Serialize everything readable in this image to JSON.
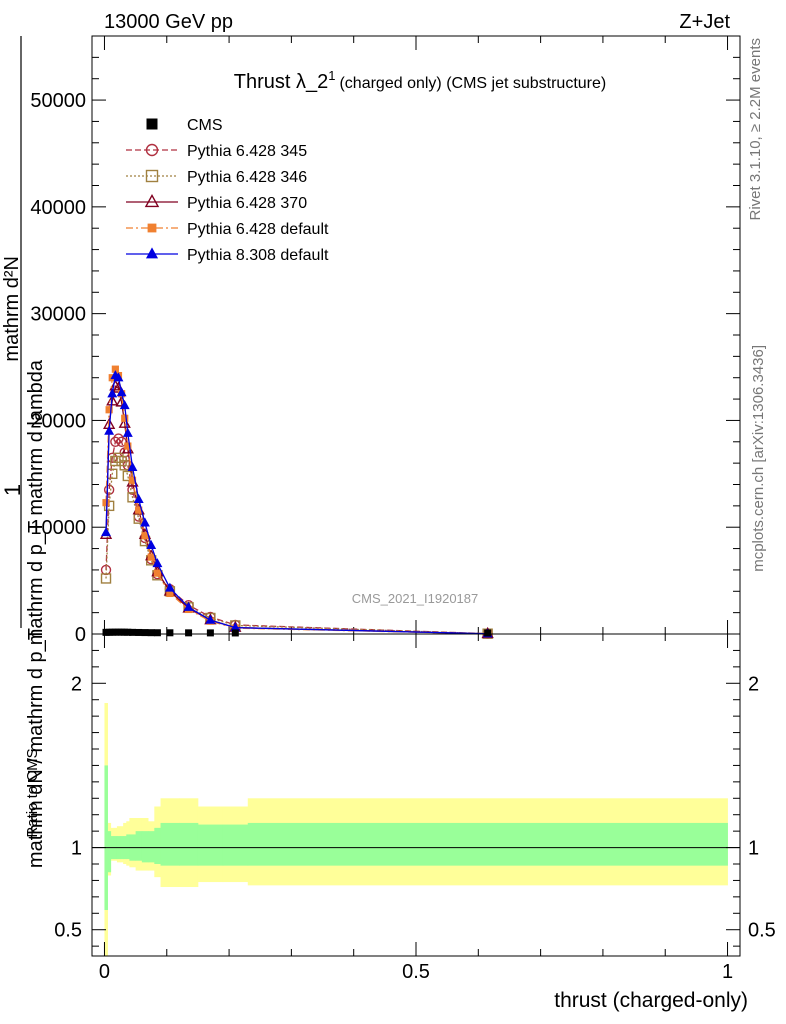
{
  "header": {
    "energy": "13000 GeV pp",
    "process": "Z+Jet",
    "side_top": "Rivet 3.1.10, ≥ 2.2M events",
    "side_bottom": "mcplots.cern.ch [arXiv:1306.3436]"
  },
  "chart_data": [
    {
      "type": "line",
      "panel": "main",
      "title": "Thrust λ_2¹ (charged only) (CMS jet substructure)",
      "title_main": "Thrust λ_2",
      "title_sup": "1",
      "title_rest": "(charged only) (CMS jet substructure)",
      "watermark": "CMS_2021_I1920187",
      "ylabel": "mathrm d²N / mathrm d p_T mathrm d lambda",
      "ylabel_prefix": "1",
      "ylabel_denominator": "mathrm dN / mathrm d p_T",
      "ylabel_numerator_line1": "mathrm d²N",
      "ylabel_numerator_line2": "mathrm d p_T mathrm d lambda",
      "xlim": [
        -0.02,
        1.02
      ],
      "ylim": [
        0,
        56000
      ],
      "yticks": [
        0,
        10000,
        20000,
        30000,
        40000,
        50000
      ],
      "ytick_labels": [
        "0",
        "10000",
        "20000",
        "30000",
        "40000",
        "50000"
      ],
      "legend_position": "top-left",
      "series": [
        {
          "name": "CMS",
          "color": "#000000",
          "marker": "filled-square",
          "line": "none",
          "x": [
            0.0025,
            0.0075,
            0.0125,
            0.0175,
            0.0225,
            0.0275,
            0.0325,
            0.0375,
            0.045,
            0.055,
            0.065,
            0.075,
            0.085,
            0.105,
            0.135,
            0.17,
            0.21,
            0.615
          ],
          "y": [
            60,
            70,
            75,
            80,
            80,
            80,
            75,
            70,
            60,
            50,
            40,
            30,
            25,
            20,
            15,
            10,
            5,
            1
          ]
        },
        {
          "name": "Pythia 6.428 345",
          "color": "#b03040",
          "marker": "open-circle",
          "line": "dashed",
          "x": [
            0.0025,
            0.0075,
            0.0125,
            0.0175,
            0.0225,
            0.0275,
            0.0325,
            0.0375,
            0.045,
            0.055,
            0.065,
            0.075,
            0.085,
            0.105,
            0.135,
            0.17,
            0.21,
            0.615
          ],
          "y": [
            6000,
            13500,
            16500,
            18000,
            18300,
            18000,
            17000,
            15800,
            13500,
            11000,
            9000,
            7000,
            5600,
            4200,
            2700,
            1600,
            850,
            30
          ]
        },
        {
          "name": "Pythia 6.428 346",
          "color": "#a08040",
          "marker": "open-square",
          "line": "dotted",
          "x": [
            0.0025,
            0.0075,
            0.0125,
            0.0175,
            0.0225,
            0.0275,
            0.0325,
            0.0375,
            0.045,
            0.055,
            0.065,
            0.075,
            0.085,
            0.105,
            0.135,
            0.17,
            0.21,
            0.615
          ],
          "y": [
            5200,
            12000,
            15000,
            16200,
            16500,
            16200,
            15800,
            14800,
            12800,
            10800,
            8700,
            6900,
            5500,
            4000,
            2500,
            1500,
            800,
            30
          ]
        },
        {
          "name": "Pythia 6.428 370",
          "color": "#800020",
          "marker": "open-triangle",
          "line": "solid",
          "x": [
            0.0025,
            0.0075,
            0.0125,
            0.0175,
            0.0225,
            0.0275,
            0.0325,
            0.0375,
            0.045,
            0.055,
            0.065,
            0.075,
            0.085,
            0.105,
            0.135,
            0.17,
            0.21,
            0.615
          ],
          "y": [
            9300,
            19600,
            21800,
            23200,
            23000,
            21700,
            19700,
            17300,
            14200,
            11600,
            9300,
            7300,
            5800,
            4000,
            2400,
            1300,
            600,
            20
          ]
        },
        {
          "name": "Pythia 6.428 default",
          "color": "#f08030",
          "marker": "filled-square-small",
          "line": "dashdot",
          "x": [
            0.0025,
            0.0075,
            0.0125,
            0.0175,
            0.0225,
            0.0275,
            0.0325,
            0.0375,
            0.045,
            0.055,
            0.065,
            0.075,
            0.085,
            0.105,
            0.135,
            0.17,
            0.21,
            0.615
          ],
          "y": [
            12300,
            21000,
            24000,
            24800,
            24200,
            22500,
            20200,
            17600,
            14400,
            11600,
            9200,
            7200,
            5700,
            3800,
            2300,
            1200,
            550,
            15
          ]
        },
        {
          "name": "Pythia 8.308 default",
          "color": "#0000e0",
          "marker": "filled-triangle",
          "line": "solid",
          "x": [
            0.0025,
            0.0075,
            0.0125,
            0.0175,
            0.0225,
            0.0275,
            0.0325,
            0.0375,
            0.045,
            0.055,
            0.065,
            0.075,
            0.085,
            0.105,
            0.135,
            0.17,
            0.21,
            0.615
          ],
          "y": [
            9500,
            19000,
            22500,
            24200,
            24000,
            22600,
            21400,
            18800,
            15600,
            12600,
            10400,
            8300,
            6600,
            4300,
            2500,
            1300,
            600,
            20
          ]
        }
      ]
    },
    {
      "type": "area",
      "panel": "ratio",
      "ylabel": "Ratio to CMS",
      "xlabel": "thrust (charged-only)",
      "xlim": [
        -0.02,
        1.02
      ],
      "ylim": [
        0.34,
        2.3
      ],
      "yticks": [
        0.5,
        1,
        2
      ],
      "ytick_labels": [
        "0.5",
        "1",
        "2"
      ],
      "xticks": [
        0,
        0.5,
        1
      ],
      "xtick_labels": [
        "0",
        "0.5",
        "1"
      ],
      "reference_line": 1,
      "bin_edges": [
        0,
        0.005,
        0.01,
        0.015,
        0.02,
        0.025,
        0.03,
        0.035,
        0.04,
        0.05,
        0.06,
        0.07,
        0.08,
        0.09,
        0.12,
        0.15,
        0.19,
        0.23,
        1.0
      ],
      "band_inner_colour": "#99ff99",
      "band_outer_colour": "#ffff99",
      "stat_band_low": [
        0.62,
        0.85,
        0.93,
        0.93,
        0.93,
        0.93,
        0.93,
        0.93,
        0.92,
        0.92,
        0.91,
        0.91,
        0.9,
        0.89,
        0.89,
        0.89,
        0.89,
        0.89
      ],
      "stat_band_high": [
        1.5,
        1.1,
        1.07,
        1.07,
        1.07,
        1.07,
        1.07,
        1.08,
        1.08,
        1.1,
        1.1,
        1.1,
        1.12,
        1.15,
        1.15,
        1.14,
        1.14,
        1.15
      ],
      "total_band_low": [
        0.34,
        0.83,
        0.92,
        0.92,
        0.91,
        0.91,
        0.9,
        0.89,
        0.88,
        0.86,
        0.86,
        0.86,
        0.82,
        0.76,
        0.76,
        0.79,
        0.79,
        0.77
      ],
      "total_band_high": [
        1.88,
        1.15,
        1.12,
        1.12,
        1.13,
        1.13,
        1.15,
        1.16,
        1.18,
        1.18,
        1.18,
        1.16,
        1.25,
        1.3,
        1.3,
        1.25,
        1.25,
        1.3
      ]
    }
  ]
}
